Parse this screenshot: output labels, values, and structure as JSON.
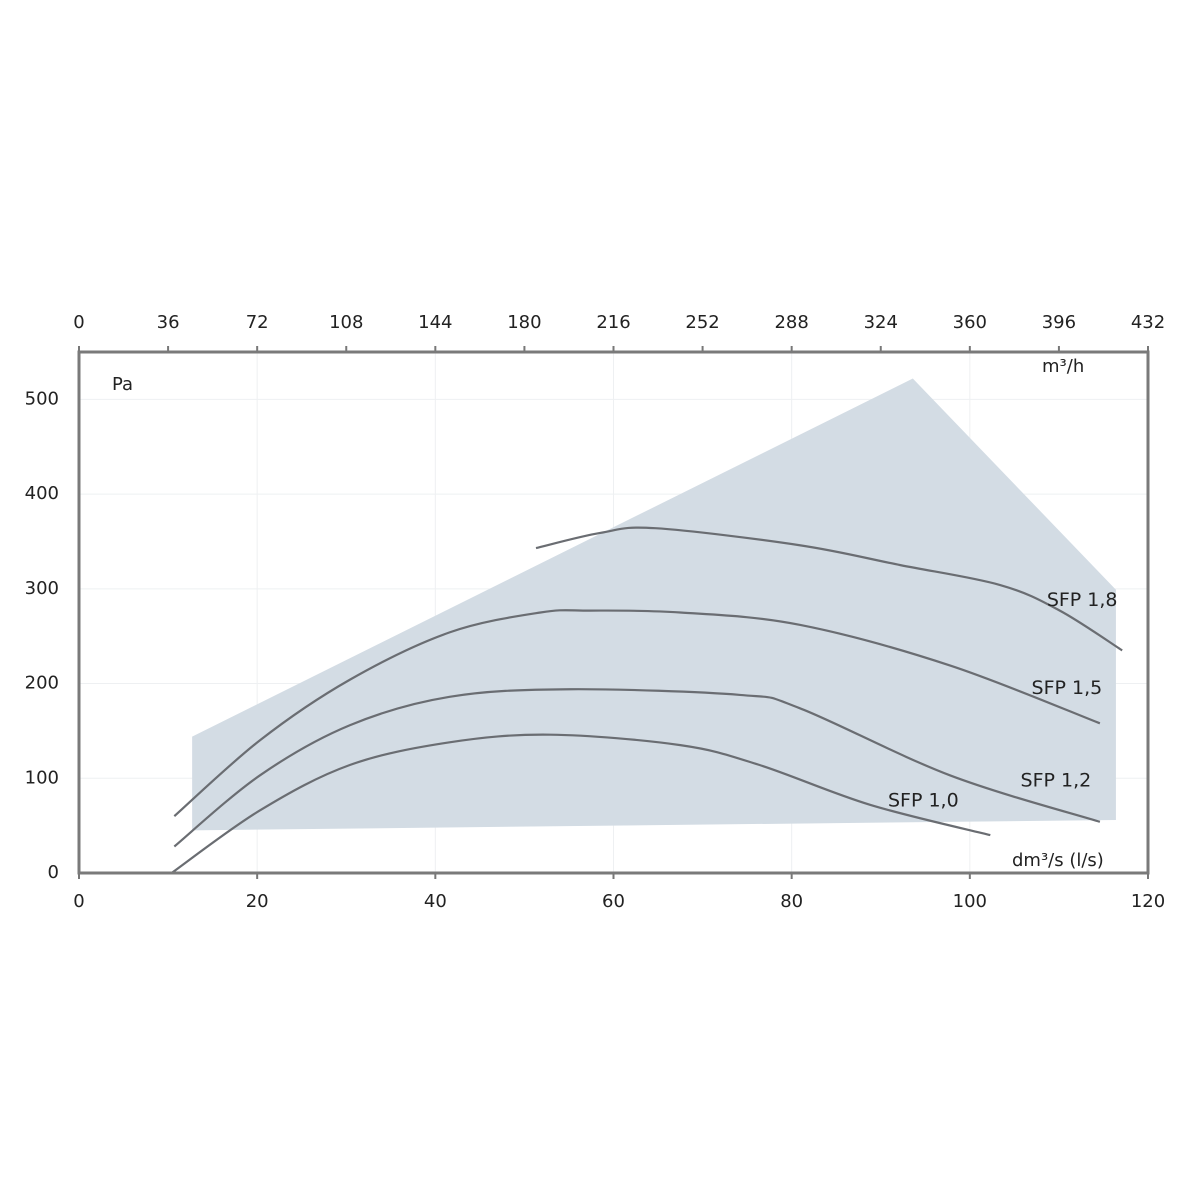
{
  "chart_data": {
    "type": "line",
    "y_label": "Pa",
    "x_label": "dm³/s (l/s)",
    "x2_label": "m³/h",
    "xlim": [
      0,
      120
    ],
    "xticks": [
      0,
      20,
      40,
      60,
      80,
      100,
      120
    ],
    "x2lim": [
      0,
      432
    ],
    "x2ticks": [
      0,
      36,
      72,
      108,
      144,
      180,
      216,
      252,
      288,
      324,
      360,
      396,
      432
    ],
    "ylim": [
      0,
      550
    ],
    "yticks": [
      0,
      100,
      200,
      300,
      400,
      500
    ],
    "grid": true,
    "envelope": {
      "color": "#d3dce4",
      "x": [
        12.7,
        93.6,
        116.4,
        116.4,
        12.7
      ],
      "y": [
        144,
        522,
        299,
        56,
        45
      ]
    },
    "series": [
      {
        "name": "SFP 1,8",
        "color": "#6a6d72",
        "x": [
          51.3,
          58.5,
          64.7,
          80.9,
          92.2,
          103.4,
          110.1,
          117.1
        ],
        "values": [
          343,
          359,
          364,
          346,
          325,
          304,
          277,
          235
        ]
      },
      {
        "name": "SFP 1,5",
        "color": "#6a6d72",
        "x": [
          10.7,
          20.3,
          30.4,
          41.6,
          51.8,
          57.4,
          67.5,
          80.9,
          97.8,
          114.6
        ],
        "values": [
          60,
          140,
          204,
          254,
          275,
          277,
          275,
          262,
          219,
          158
        ]
      },
      {
        "name": "SFP 1,2",
        "color": "#6a6d72",
        "x": [
          10.7,
          20.3,
          30.4,
          41.6,
          55.1,
          74.2,
          80.9,
          97.8,
          114.6
        ],
        "values": [
          28,
          103,
          156,
          186,
          194,
          188,
          174,
          103,
          54
        ]
      },
      {
        "name": "SFP 1,0",
        "color": "#6a6d72",
        "x": [
          10.4,
          20.3,
          30.4,
          41.6,
          52.9,
          67.5,
          76.4,
          88.8,
          102.3
        ],
        "values": [
          0,
          66,
          114,
          138,
          146,
          135,
          114,
          72,
          40
        ]
      }
    ]
  }
}
